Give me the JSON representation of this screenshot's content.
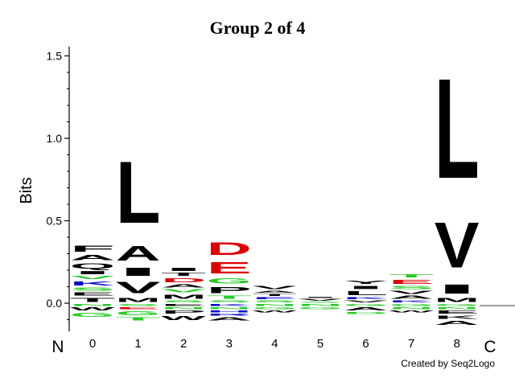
{
  "chart_data": {
    "type": "sequence-logo",
    "title": "Group 2 of 4",
    "ylabel": "Bits",
    "ylim": [
      -0.17,
      1.55
    ],
    "yticks": [
      0.0,
      0.5,
      1.0,
      1.5
    ],
    "ytick_labels": [
      "0.0",
      "0.5",
      "1.0",
      "1.5"
    ],
    "positions": [
      "0",
      "1",
      "2",
      "3",
      "4",
      "5",
      "6",
      "7",
      "8"
    ],
    "n_label": "N",
    "c_label": "C",
    "credit": "Created by Seq2Logo",
    "colors": {
      "black": "#000000",
      "red": "#dd0000",
      "green": "#22cc22",
      "blue": "#0000cc",
      "purple": "#aa22aa"
    },
    "stacks": [
      {
        "position": "0",
        "positive": [
          [
            "T",
            0.04,
            "black"
          ],
          [
            "E",
            0.03,
            "black"
          ],
          [
            "S",
            0.03,
            "green"
          ],
          [
            "K",
            0.04,
            "blue"
          ],
          [
            "V",
            0.03,
            "green"
          ],
          [
            "I",
            0.03,
            "black"
          ],
          [
            "Q",
            0.05,
            "black"
          ],
          [
            "A",
            0.05,
            "black"
          ],
          [
            "F",
            0.06,
            "black"
          ]
        ],
        "negative": [
          [
            "N",
            0.02,
            "green"
          ],
          [
            "W",
            0.03,
            "black"
          ],
          [
            "G",
            0.04,
            "green"
          ]
        ]
      },
      {
        "position": "1",
        "positive": [
          [
            "M",
            0.04,
            "black"
          ],
          [
            "V",
            0.11,
            "black"
          ],
          [
            "I",
            0.08,
            "black"
          ],
          [
            "A",
            0.14,
            "black"
          ],
          [
            "L",
            0.6,
            "black"
          ]
        ],
        "negative": [
          [
            "S",
            0.02,
            "green"
          ],
          [
            "E",
            0.02,
            "red"
          ],
          [
            "G",
            0.04,
            "green"
          ],
          [
            "T",
            0.03,
            "green"
          ]
        ]
      },
      {
        "position": "2",
        "positive": [
          [
            "S",
            0.02,
            "green"
          ],
          [
            "M",
            0.04,
            "black"
          ],
          [
            "V",
            0.03,
            "green"
          ],
          [
            "A",
            0.03,
            "black"
          ],
          [
            "D",
            0.04,
            "red"
          ],
          [
            "T",
            0.03,
            "black"
          ],
          [
            "I",
            0.03,
            "black"
          ]
        ],
        "negative": [
          [
            "E",
            0.02,
            "black"
          ],
          [
            "N",
            0.02,
            "green"
          ],
          [
            "P",
            0.03,
            "black"
          ],
          [
            "W",
            0.04,
            "black"
          ]
        ]
      },
      {
        "position": "3",
        "positive": [
          [
            "S",
            0.02,
            "green"
          ],
          [
            "T",
            0.03,
            "green"
          ],
          [
            "P",
            0.06,
            "black"
          ],
          [
            "G",
            0.05,
            "green"
          ],
          [
            "E",
            0.11,
            "red"
          ],
          [
            "D",
            0.12,
            "red"
          ]
        ],
        "negative": [
          [
            "K",
            0.02,
            "blue"
          ],
          [
            "N",
            0.02,
            "green"
          ],
          [
            "H",
            0.02,
            "blue"
          ],
          [
            "R",
            0.02,
            "blue"
          ],
          [
            "A",
            0.03,
            "black"
          ]
        ]
      },
      {
        "position": "4",
        "positive": [
          [
            "S",
            0.02,
            "green"
          ],
          [
            "E",
            0.02,
            "blue"
          ],
          [
            "T",
            0.02,
            "black"
          ],
          [
            "A",
            0.02,
            "black"
          ],
          [
            "V",
            0.03,
            "black"
          ]
        ],
        "negative": [
          [
            "N",
            0.02,
            "green"
          ],
          [
            "G",
            0.02,
            "green"
          ],
          [
            "W",
            0.02,
            "black"
          ]
        ]
      },
      {
        "position": "5",
        "positive": [
          [
            "S",
            0.01,
            "green"
          ],
          [
            "V",
            0.02,
            "black"
          ],
          [
            "I",
            0.01,
            "black"
          ]
        ],
        "negative": [
          [
            "N",
            0.02,
            "green"
          ],
          [
            "G",
            0.02,
            "green"
          ]
        ]
      },
      {
        "position": "6",
        "positive": [
          [
            "V",
            0.02,
            "black"
          ],
          [
            "K",
            0.02,
            "blue"
          ],
          [
            "L",
            0.04,
            "black"
          ],
          [
            "I",
            0.03,
            "black"
          ],
          [
            "Y",
            0.03,
            "black"
          ]
        ],
        "negative": [
          [
            "G",
            0.02,
            "green"
          ],
          [
            "A",
            0.03,
            "black"
          ],
          [
            "D",
            0.02,
            "green"
          ]
        ]
      },
      {
        "position": "7",
        "positive": [
          [
            "K",
            0.02,
            "blue"
          ],
          [
            "A",
            0.03,
            "black"
          ],
          [
            "V",
            0.03,
            "black"
          ],
          [
            "S",
            0.03,
            "green"
          ],
          [
            "E",
            0.04,
            "red"
          ],
          [
            "T",
            0.03,
            "green"
          ]
        ],
        "negative": [
          [
            "G",
            0.02,
            "green"
          ],
          [
            "N",
            0.02,
            "green"
          ],
          [
            "W",
            0.02,
            "black"
          ]
        ]
      },
      {
        "position": "8",
        "positive": [
          [
            "M",
            0.04,
            "black"
          ],
          [
            "I",
            0.09,
            "black"
          ],
          [
            "V",
            0.44,
            "black"
          ],
          [
            "L",
            0.97,
            "black"
          ]
        ],
        "negative": [
          [
            "G",
            0.02,
            "green"
          ],
          [
            "N",
            0.02,
            "green"
          ],
          [
            "E",
            0.03,
            "black"
          ],
          [
            "K",
            0.03,
            "black"
          ],
          [
            "A",
            0.04,
            "black"
          ]
        ]
      }
    ]
  }
}
